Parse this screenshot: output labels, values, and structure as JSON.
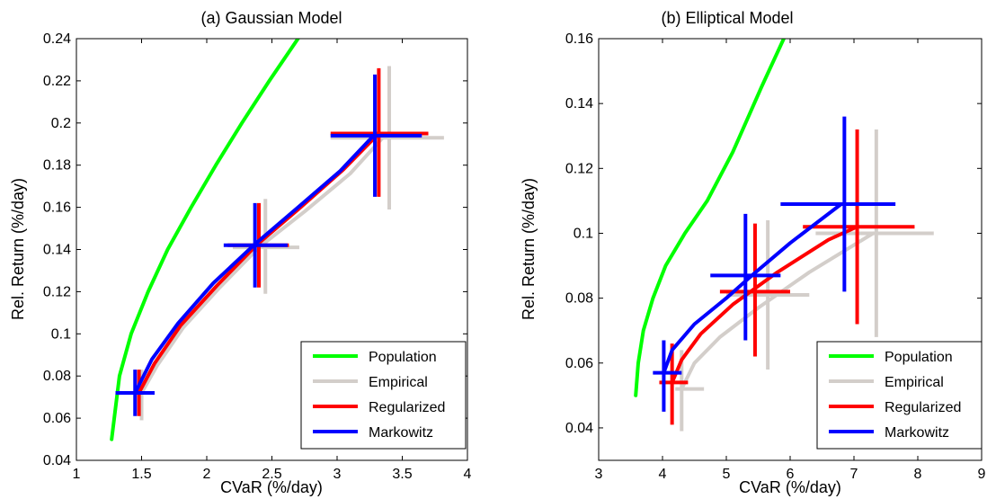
{
  "figure": {
    "background": "#ffffff",
    "legend_entries": [
      {
        "label": "Population",
        "color": "#00ff00"
      },
      {
        "label": "Empirical",
        "color": "#d3ceca"
      },
      {
        "label": "Regularized",
        "color": "#ff0000"
      },
      {
        "label": "Markowitz",
        "color": "#0000ff"
      }
    ]
  },
  "chart_data": [
    {
      "type": "line",
      "title": "(a) Gaussian Model",
      "xlabel": "CVaR (%/day)",
      "ylabel": "Rel. Return (%/day)",
      "xlim": [
        1,
        4
      ],
      "ylim": [
        0.04,
        0.24
      ],
      "xticks": [
        1,
        1.5,
        2,
        2.5,
        3,
        3.5,
        4
      ],
      "xtick_labels": [
        "1",
        "1.5",
        "2",
        "2.5",
        "3",
        "3.5",
        "4"
      ],
      "yticks": [
        0.04,
        0.06,
        0.08,
        0.1,
        0.12,
        0.14,
        0.16,
        0.18,
        0.2,
        0.22,
        0.24
      ],
      "ytick_labels": [
        "0.04",
        "0.06",
        "0.08",
        "0.1",
        "0.12",
        "0.14",
        "0.16",
        "0.18",
        "0.2",
        "0.22",
        "0.24"
      ],
      "grid": false,
      "legend_position": "bottom-right",
      "series": [
        {
          "name": "Population",
          "color": "#00ff00",
          "x": [
            1.27,
            1.33,
            1.42,
            1.55,
            1.7,
            1.88,
            2.07,
            2.27,
            2.48,
            2.7
          ],
          "y": [
            0.05,
            0.08,
            0.1,
            0.12,
            0.14,
            0.16,
            0.18,
            0.2,
            0.22,
            0.24
          ],
          "points": []
        },
        {
          "name": "Empirical",
          "color": "#d3ceca",
          "x": [
            1.5,
            1.62,
            1.82,
            2.1,
            2.4,
            2.75,
            3.1,
            3.35
          ],
          "y": [
            0.072,
            0.085,
            0.103,
            0.122,
            0.141,
            0.158,
            0.176,
            0.193
          ],
          "points": [
            {
              "x": 1.5,
              "y": 0.072,
              "x_err": [
                1.47,
                1.55
              ],
              "y_err": [
                0.059,
                0.083
              ]
            },
            {
              "x": 2.45,
              "y": 0.141,
              "x_err": [
                2.2,
                2.71
              ],
              "y_err": [
                0.119,
                0.164
              ]
            },
            {
              "x": 3.4,
              "y": 0.193,
              "x_err": [
                2.95,
                3.82
              ],
              "y_err": [
                0.159,
                0.227
              ]
            }
          ]
        },
        {
          "name": "Regularized",
          "color": "#ff0000",
          "x": [
            1.48,
            1.6,
            1.8,
            2.08,
            2.38,
            2.72,
            3.05,
            3.32
          ],
          "y": [
            0.072,
            0.086,
            0.104,
            0.123,
            0.142,
            0.16,
            0.178,
            0.195
          ],
          "points": [
            {
              "x": 1.48,
              "y": 0.072,
              "x_err": [
                1.4,
                1.56
              ],
              "y_err": [
                0.061,
                0.083
              ]
            },
            {
              "x": 2.4,
              "y": 0.142,
              "x_err": [
                2.16,
                2.63
              ],
              "y_err": [
                0.122,
                0.162
              ]
            },
            {
              "x": 3.32,
              "y": 0.195,
              "x_err": [
                2.95,
                3.7
              ],
              "y_err": [
                0.165,
                0.226
              ]
            }
          ]
        },
        {
          "name": "Markowitz",
          "color": "#0000ff",
          "x": [
            1.45,
            1.58,
            1.78,
            2.05,
            2.36,
            2.7,
            3.02,
            3.28
          ],
          "y": [
            0.072,
            0.088,
            0.105,
            0.124,
            0.142,
            0.16,
            0.177,
            0.194
          ],
          "points": [
            {
              "x": 1.45,
              "y": 0.072,
              "x_err": [
                1.3,
                1.6
              ],
              "y_err": [
                0.061,
                0.083
              ]
            },
            {
              "x": 2.37,
              "y": 0.142,
              "x_err": [
                2.13,
                2.62
              ],
              "y_err": [
                0.122,
                0.162
              ]
            },
            {
              "x": 3.29,
              "y": 0.194,
              "x_err": [
                2.95,
                3.65
              ],
              "y_err": [
                0.165,
                0.223
              ]
            }
          ]
        }
      ]
    },
    {
      "type": "line",
      "title": "(b) Elliptical Model",
      "xlabel": "CVaR (%/day)",
      "ylabel": "Rel. Return (%/day)",
      "xlim": [
        3,
        9
      ],
      "ylim": [
        0.03,
        0.16
      ],
      "xticks": [
        3,
        4,
        5,
        6,
        7,
        8,
        9
      ],
      "xtick_labels": [
        "3",
        "4",
        "5",
        "6",
        "7",
        "8",
        "9"
      ],
      "yticks": [
        0.04,
        0.06,
        0.08,
        0.1,
        0.12,
        0.14,
        0.16
      ],
      "ytick_labels": [
        "0.04",
        "0.06",
        "0.08",
        "0.1",
        "0.12",
        "0.14",
        "0.16"
      ],
      "grid": false,
      "legend_position": "bottom-right",
      "series": [
        {
          "name": "Population",
          "color": "#00ff00",
          "x": [
            3.58,
            3.62,
            3.7,
            3.85,
            4.05,
            4.35,
            4.7,
            5.1,
            5.55,
            5.9
          ],
          "y": [
            0.05,
            0.06,
            0.07,
            0.08,
            0.09,
            0.1,
            0.11,
            0.125,
            0.145,
            0.16
          ],
          "points": []
        },
        {
          "name": "Empirical",
          "color": "#d3ceca",
          "x": [
            4.3,
            4.5,
            4.9,
            5.5,
            6.3,
            7.3
          ],
          "y": [
            0.052,
            0.06,
            0.068,
            0.077,
            0.088,
            0.1
          ],
          "points": [
            {
              "x": 4.3,
              "y": 0.052,
              "x_err": [
                4.2,
                4.65
              ],
              "y_err": [
                0.039,
                0.064
              ]
            },
            {
              "x": 5.65,
              "y": 0.081,
              "x_err": [
                5.0,
                6.3
              ],
              "y_err": [
                0.058,
                0.104
              ]
            },
            {
              "x": 7.35,
              "y": 0.1,
              "x_err": [
                6.4,
                8.25
              ],
              "y_err": [
                0.068,
                0.132
              ]
            }
          ]
        },
        {
          "name": "Regularized",
          "color": "#ff0000",
          "x": [
            4.15,
            4.3,
            4.6,
            5.1,
            5.8,
            6.6,
            7.05
          ],
          "y": [
            0.054,
            0.061,
            0.069,
            0.078,
            0.088,
            0.098,
            0.102
          ],
          "points": [
            {
              "x": 4.15,
              "y": 0.054,
              "x_err": [
                3.95,
                4.4
              ],
              "y_err": [
                0.041,
                0.066
              ]
            },
            {
              "x": 5.45,
              "y": 0.082,
              "x_err": [
                4.9,
                6.0
              ],
              "y_err": [
                0.062,
                0.103
              ]
            },
            {
              "x": 7.05,
              "y": 0.102,
              "x_err": [
                6.2,
                7.95
              ],
              "y_err": [
                0.072,
                0.132
              ]
            }
          ]
        },
        {
          "name": "Markowitz",
          "color": "#0000ff",
          "x": [
            4.02,
            4.15,
            4.5,
            5.0,
            5.4,
            6.0,
            6.8
          ],
          "y": [
            0.057,
            0.064,
            0.072,
            0.08,
            0.087,
            0.097,
            0.109
          ],
          "points": [
            {
              "x": 4.02,
              "y": 0.057,
              "x_err": [
                3.85,
                4.3
              ],
              "y_err": [
                0.045,
                0.067
              ]
            },
            {
              "x": 5.3,
              "y": 0.087,
              "x_err": [
                4.75,
                5.85
              ],
              "y_err": [
                0.067,
                0.106
              ]
            },
            {
              "x": 6.85,
              "y": 0.109,
              "x_err": [
                5.85,
                7.65
              ],
              "y_err": [
                0.082,
                0.136
              ]
            }
          ]
        }
      ]
    }
  ]
}
